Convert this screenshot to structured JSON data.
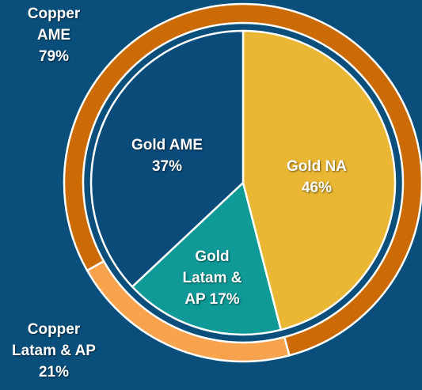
{
  "chart_data": {
    "type": "nested_pie",
    "inner": {
      "categories": [
        "Gold NA",
        "Gold Latam & AP",
        "Gold AME"
      ],
      "values": [
        46,
        17,
        37
      ],
      "value_labels": [
        "46%",
        "17%",
        "37%"
      ],
      "colors": [
        "#e9b733",
        "#0f9a97",
        "#0b4b7a"
      ],
      "startangle": 0
    },
    "outer": {
      "categories": [
        "Copper Latam & AP",
        "Copper AME"
      ],
      "values": [
        21,
        79
      ],
      "value_labels": [
        "21%",
        "79%"
      ],
      "colors": [
        "#f7a24c",
        "#cc6b06"
      ],
      "startangle": 165
    },
    "background": "#0a4f7b"
  }
}
